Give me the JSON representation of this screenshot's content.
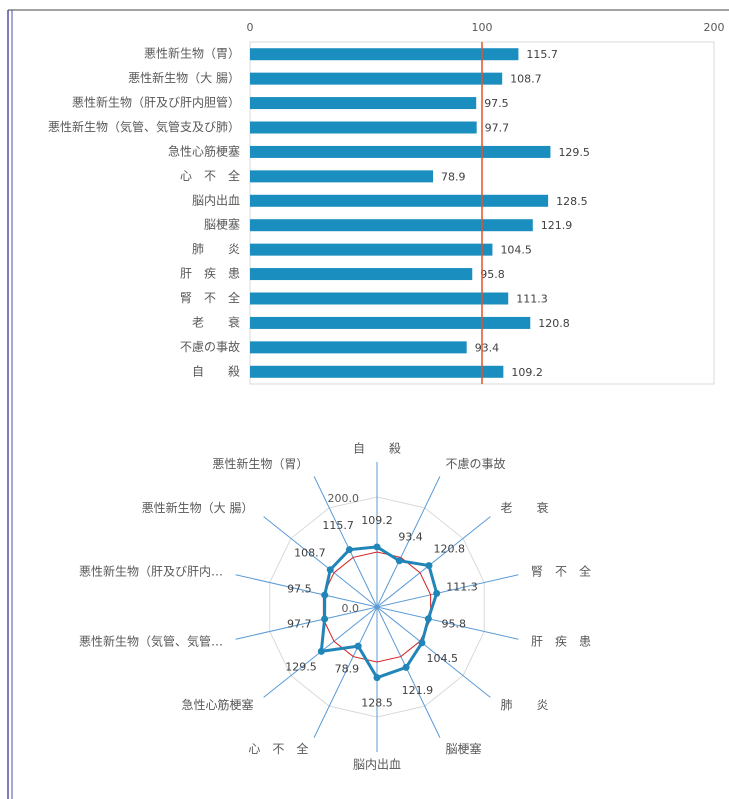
{
  "chart_data": [
    {
      "type": "bar",
      "orientation": "horizontal",
      "categories": [
        "悪性新生物（胃）",
        "悪性新生物（大 腸）",
        "悪性新生物（肝及び肝内胆管）",
        "悪性新生物（気管、気管支及び肺）",
        "急性心筋梗塞",
        "心　不　全",
        "脳内出血",
        "脳梗塞",
        "肺　　炎",
        "肝　疾　患",
        "腎　不　全",
        "老　　衰",
        "不慮の事故",
        "自　　殺"
      ],
      "values": [
        115.7,
        108.7,
        97.5,
        97.7,
        129.5,
        78.9,
        128.5,
        121.9,
        104.5,
        95.8,
        111.3,
        120.8,
        93.4,
        109.2
      ],
      "color": "#1a8ebf",
      "xlim": [
        0,
        200
      ],
      "xticks": [
        0,
        100,
        200
      ],
      "reference_line": {
        "value": 100,
        "color": "#e0542a"
      }
    },
    {
      "type": "radar",
      "categories": [
        "自　　殺",
        "不慮の事故",
        "老　　衰",
        "腎　不　全",
        "肝　疾　患",
        "肺　　炎",
        "脳梗塞",
        "脳内出血",
        "心　不　全",
        "急性心筋梗塞",
        "悪性新生物（気管、気管…",
        "悪性新生物（肝及び肝内…",
        "悪性新生物（大 腸）",
        "悪性新生物（胃）"
      ],
      "values": [
        109.2,
        93.4,
        120.8,
        111.3,
        95.8,
        104.5,
        121.9,
        128.5,
        78.9,
        129.5,
        97.7,
        97.5,
        108.7,
        115.7
      ],
      "color": "#2185b8",
      "rlim": [
        0,
        200
      ],
      "rticks": [
        {
          "value": 0,
          "label": "0.0"
        },
        {
          "value": 200,
          "label": "200.0"
        }
      ],
      "reference_line": {
        "value": 100,
        "color": "#d42020"
      }
    }
  ]
}
